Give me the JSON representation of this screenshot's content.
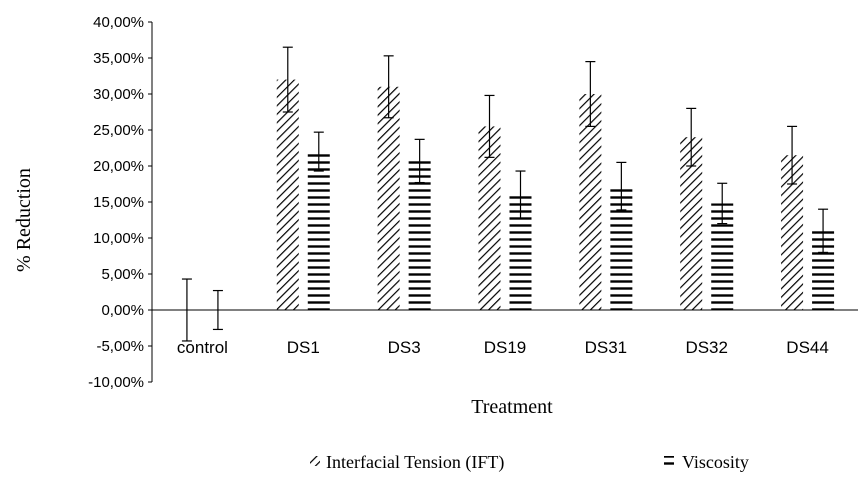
{
  "chart_data": {
    "type": "bar",
    "xlabel": "Treatment",
    "ylabel": "% Reduction",
    "ylim": [
      -0.1,
      0.4
    ],
    "yticks": [
      -0.1,
      -0.05,
      0.0,
      0.05,
      0.1,
      0.15,
      0.2,
      0.25,
      0.3,
      0.35,
      0.4
    ],
    "ytick_labels": [
      "-10,00%",
      "-5,00%",
      "0,00%",
      "5,00%",
      "10,00%",
      "15,00%",
      "20,00%",
      "25,00%",
      "30,00%",
      "35,00%",
      "40,00%"
    ],
    "categories": [
      "control",
      "DS1",
      "DS3",
      "DS19",
      "DS31",
      "DS32",
      "DS44"
    ],
    "legend_position": "bottom",
    "grid": false,
    "series": [
      {
        "name": "Interfacial Tension (IFT)",
        "pattern": "diagonal-hatch",
        "values": [
          0.0,
          0.32,
          0.31,
          0.255,
          0.3,
          0.24,
          0.215
        ],
        "error": [
          0.043,
          0.045,
          0.043,
          0.043,
          0.045,
          0.04,
          0.04
        ]
      },
      {
        "name": "Viscosity",
        "pattern": "horizontal-lines",
        "values": [
          0.0,
          0.22,
          0.207,
          0.16,
          0.172,
          0.148,
          0.11
        ],
        "error": [
          0.027,
          0.027,
          0.03,
          0.033,
          0.033,
          0.028,
          0.03
        ]
      }
    ]
  }
}
